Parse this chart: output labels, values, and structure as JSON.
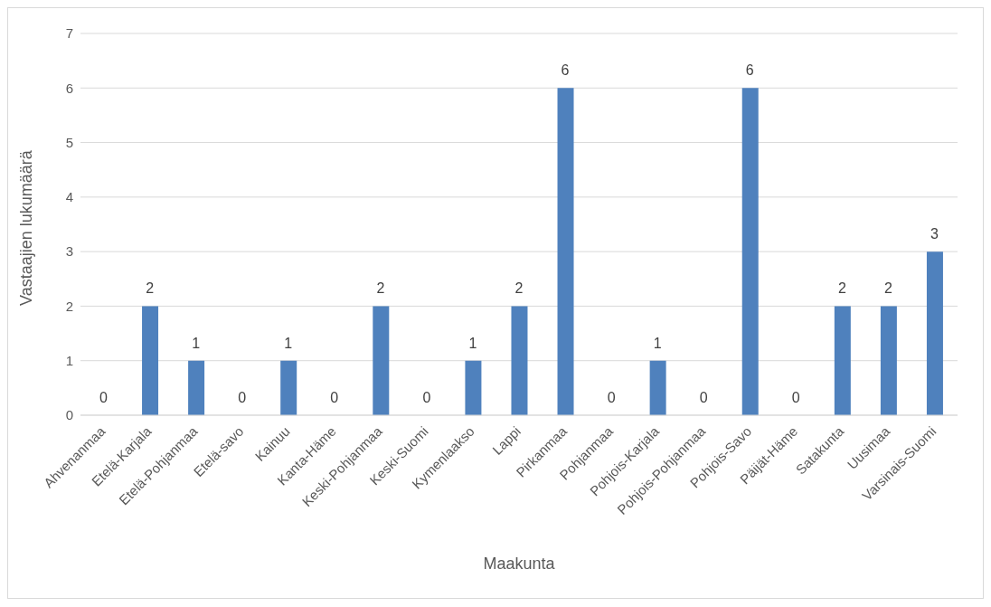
{
  "chart_data": {
    "type": "bar",
    "xlabel": "Maakunta",
    "ylabel": "Vastaajien lukumäärä",
    "categories": [
      "Ahvenanmaa",
      "Etelä-Karjala",
      "Etelä-Pohjanmaa",
      "Etelä-savo",
      "Kainuu",
      "Kanta-Häme",
      "Keski-Pohjanmaa",
      "Keski-Suomi",
      "Kymenlaakso",
      "Lappi",
      "Pirkanmaa",
      "Pohjanmaa",
      "Pohjois-Karjala",
      "Pohjois-Pohjanmaa",
      "Pohjois-Savo",
      "Päijät-Häme",
      "Satakunta",
      "Uusimaa",
      "Varsinais-Suomi"
    ],
    "values": [
      0,
      2,
      1,
      0,
      1,
      0,
      2,
      0,
      1,
      2,
      6,
      0,
      1,
      0,
      6,
      0,
      2,
      2,
      3
    ],
    "color": "#4f81bd",
    "ylim": [
      0,
      7
    ],
    "yticks": [
      0,
      1,
      2,
      3,
      4,
      5,
      6,
      7
    ],
    "grid": "y",
    "data_labels": true,
    "legend": false
  }
}
